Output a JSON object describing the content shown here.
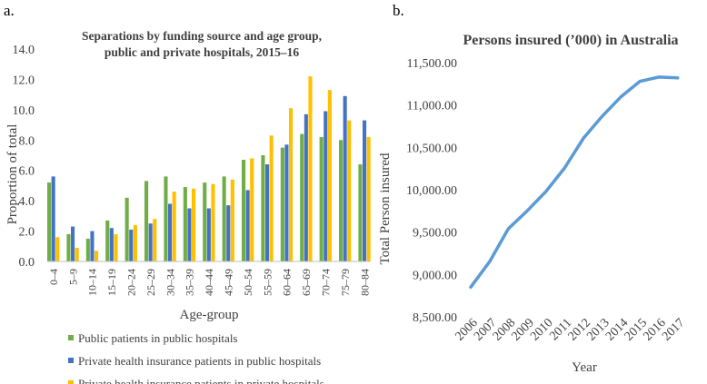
{
  "chart_data": [
    {
      "panel_label": "a.",
      "type": "bar",
      "title_lines": [
        "Separations by funding source and age group,",
        "public and private hospitals, 2015–16"
      ],
      "xlabel": "Age-group",
      "ylabel": "Proportion of total",
      "ylim": [
        0,
        14
      ],
      "yticks": [
        "0.0",
        "2.0",
        "4.0",
        "6.0",
        "8.0",
        "10.0",
        "12.0",
        "14.0"
      ],
      "categories": [
        "0–4",
        "5–9",
        "10–14",
        "15–19",
        "20–24",
        "25–29",
        "30–34",
        "35–39",
        "40–44",
        "45–49",
        "50–54",
        "55–59",
        "60–64",
        "65–69",
        "70–74",
        "75–79",
        "80–84"
      ],
      "series": [
        {
          "name": "Public patients in public hospitals",
          "color": "#70AD47",
          "values": [
            5.2,
            1.8,
            1.5,
            2.7,
            4.2,
            5.3,
            5.6,
            4.9,
            5.2,
            5.6,
            6.7,
            7.0,
            7.5,
            8.4,
            8.2,
            8.0,
            6.4
          ]
        },
        {
          "name": "Private health insurance patients in public hospitals",
          "color": "#4472C4",
          "values": [
            5.6,
            2.3,
            2.0,
            2.2,
            2.1,
            2.5,
            3.8,
            3.5,
            3.5,
            3.7,
            4.7,
            6.4,
            7.7,
            9.7,
            9.9,
            10.9,
            9.3
          ]
        },
        {
          "name": "Private health insurance patients in private hospitals",
          "color": "#FFC000",
          "values": [
            1.6,
            0.9,
            0.7,
            1.8,
            2.4,
            2.8,
            4.6,
            4.8,
            5.1,
            5.4,
            6.8,
            8.3,
            10.1,
            12.2,
            11.3,
            9.3,
            8.2
          ]
        }
      ]
    },
    {
      "panel_label": "b.",
      "type": "line",
      "title": "Persons insured (’000) in Australia",
      "xlabel": "Year",
      "ylabel": "Total Person insured",
      "ylim": [
        8500,
        11500
      ],
      "yticks": [
        "8,500.00",
        "9,000.00",
        "9,500.00",
        "10,000.00",
        "10,500.00",
        "11,000.00",
        "11,500.00"
      ],
      "x": [
        "2006",
        "2007",
        "2008",
        "2009",
        "2010",
        "2011",
        "2012",
        "2013",
        "2014",
        "2015",
        "2016",
        "2017"
      ],
      "series": [
        {
          "name": "Persons insured",
          "color": "#5B9BD5",
          "values": [
            8850,
            9150,
            9540,
            9750,
            9980,
            10260,
            10610,
            10870,
            11100,
            11280,
            11330,
            11320
          ]
        }
      ]
    }
  ]
}
